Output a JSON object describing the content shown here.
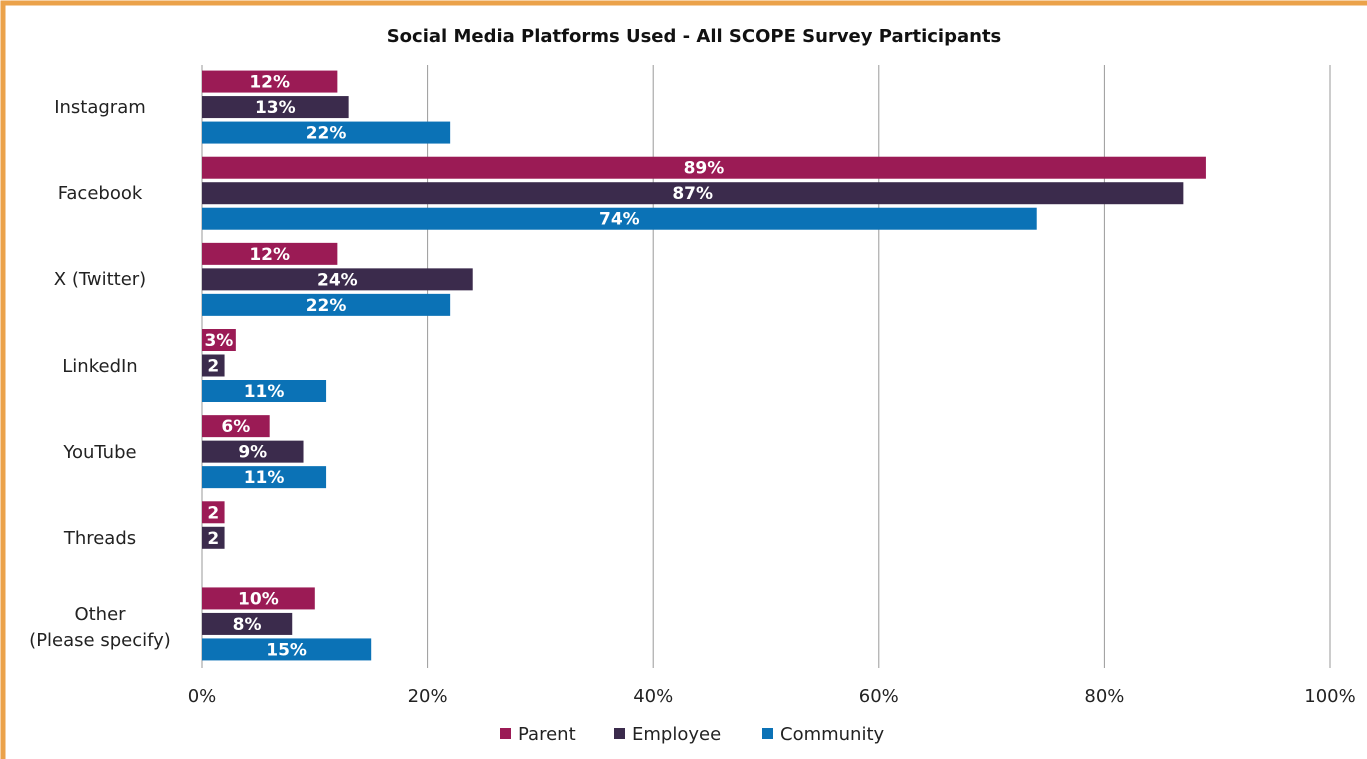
{
  "chart_data": {
    "type": "hbar",
    "title": "Social Media Platforms Used - All SCOPE Survey Participants",
    "categories": [
      "Instagram",
      "Facebook",
      "X (Twitter)",
      "LinkedIn",
      "YouTube",
      "Threads",
      "Other\n(Please specify)"
    ],
    "series": [
      {
        "name": "Parent",
        "color": "#9b1b55",
        "values": [
          12,
          89,
          12,
          3,
          6,
          2,
          10
        ],
        "value_labels": [
          "12%",
          "89%",
          "12%",
          "3%",
          "6%",
          "2",
          "10%"
        ]
      },
      {
        "name": "Employee",
        "color": "#3b2b4c",
        "values": [
          13,
          87,
          24,
          2,
          9,
          2,
          8
        ],
        "value_labels": [
          "13%",
          "87%",
          "24%",
          "2",
          "9%",
          "2",
          "8%"
        ]
      },
      {
        "name": "Community",
        "color": "#0b72b6",
        "values": [
          22,
          74,
          22,
          11,
          11,
          null,
          15
        ],
        "value_labels": [
          "22%",
          "74%",
          "22%",
          "11%",
          "11%",
          null,
          "15%"
        ]
      }
    ],
    "xlim": [
      0,
      100
    ],
    "xticks": [
      {
        "value": 0,
        "label": "0%"
      },
      {
        "value": 20,
        "label": "20%"
      },
      {
        "value": 40,
        "label": "40%"
      },
      {
        "value": 60,
        "label": "60%"
      },
      {
        "value": 80,
        "label": "80%"
      },
      {
        "value": 100,
        "label": "100%"
      }
    ],
    "grid": true,
    "legend": "bottom"
  }
}
